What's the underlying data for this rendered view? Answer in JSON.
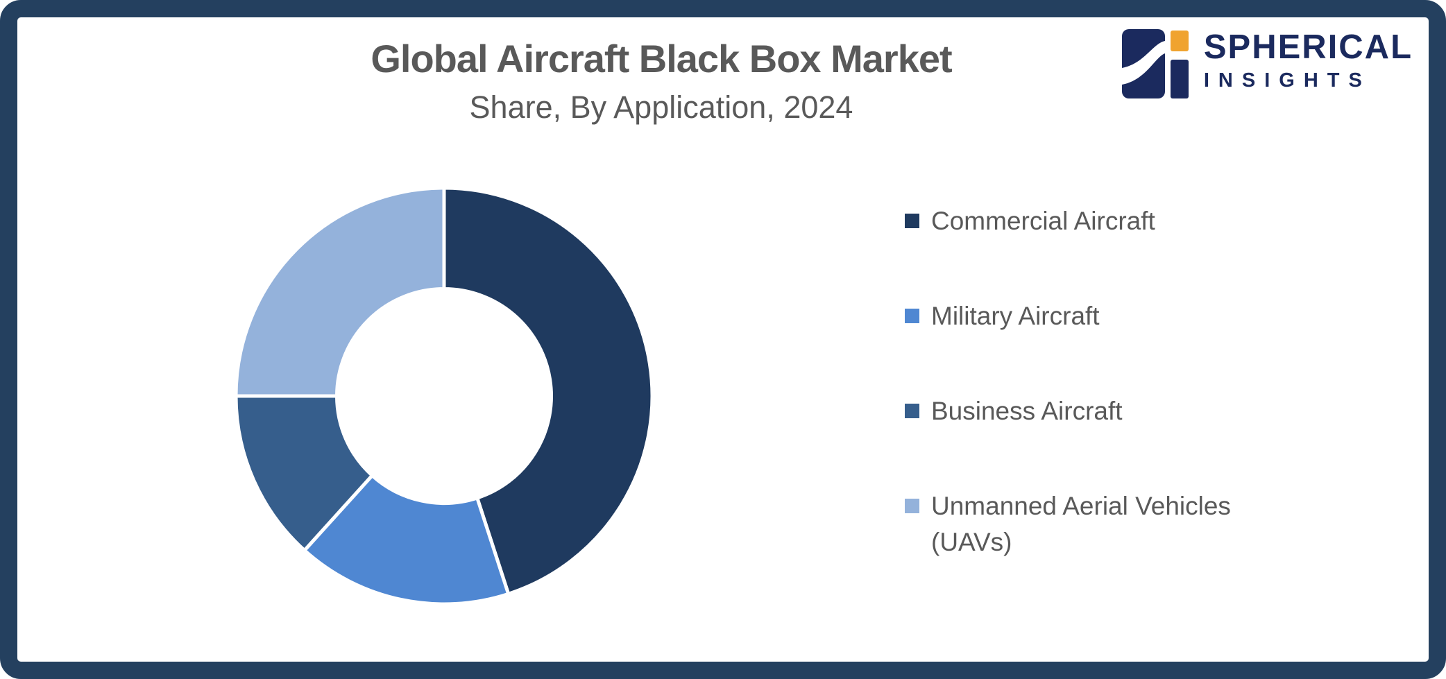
{
  "frame": {
    "border_color": "#24405F"
  },
  "header": {
    "title": "Global Aircraft Black Box Market",
    "subtitle": "Share, By Application, 2024",
    "text_color": "#595959"
  },
  "logo": {
    "brand_top": "SPHERICAL",
    "brand_bottom": "INSIGHTS",
    "navy": "#1B2A5E",
    "orange": "#F0A32F"
  },
  "chart_data": {
    "type": "pie",
    "donut": true,
    "inner_radius_ratio": 0.515,
    "start_angle_deg": 0,
    "direction": "clockwise",
    "title": "Global Aircraft Black Box Market",
    "subtitle": "Share, By Application, 2024",
    "categories": [
      "Commercial Aircraft",
      "Military Aircraft",
      "Business Aircraft",
      "Unmanned Aerial Vehicles (UAVs)"
    ],
    "values": [
      45,
      16.7,
      13.3,
      25
    ],
    "unit": "%",
    "colors": [
      "#1F3A5F",
      "#4F87D2",
      "#365E8C",
      "#94B2DB"
    ],
    "legend_position": "right",
    "data_labels": false,
    "slice_gap_color": "#FFFFFF"
  }
}
